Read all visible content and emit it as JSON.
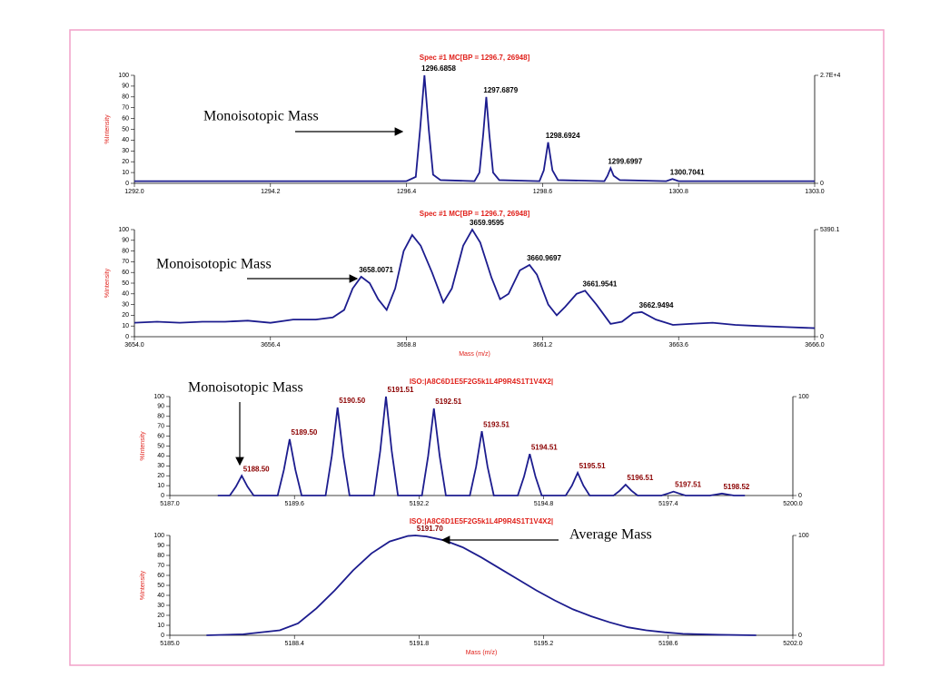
{
  "chart_data": [
    {
      "type": "line",
      "title": "Spec #1 MC[BP = 1296.7, 26948]",
      "ylabel": "%Intensity",
      "annotation": "Monoisotopic Mass",
      "xlim": [
        1292,
        1303
      ],
      "xticks": [
        {
          "value": 1292,
          "label": "1292.0"
        },
        1294.2,
        1296.4,
        1298.6,
        1300.8,
        {
          "value": 1303,
          "label": "1303.0"
        }
      ],
      "ylim": [
        0,
        100
      ],
      "yticks": [
        0,
        10,
        20,
        30,
        40,
        50,
        60,
        70,
        80,
        90,
        100
      ],
      "y2lim": [
        0,
        100
      ],
      "y2ticks": [
        0,
        {
          "value": 100,
          "label": "2.7E+4"
        }
      ],
      "color": "#1c1c8e",
      "peak_color": "#000000",
      "x": [
        1292,
        1296.4,
        1296.55,
        1296.62,
        1296.69,
        1296.76,
        1296.83,
        1296.95,
        1297.5,
        1297.58,
        1297.64,
        1297.69,
        1297.74,
        1297.8,
        1297.9,
        1298.55,
        1298.62,
        1298.69,
        1298.76,
        1298.85,
        1299.6,
        1299.65,
        1299.7,
        1299.75,
        1299.85,
        1300.6,
        1300.7,
        1300.8,
        1303
      ],
      "values": [
        2,
        2,
        6,
        50,
        100,
        50,
        8,
        3,
        2,
        10,
        45,
        80,
        45,
        10,
        3,
        2,
        12,
        38,
        12,
        3,
        2,
        7,
        14,
        7,
        3,
        2,
        4,
        2,
        2
      ],
      "peaks": {
        "x": [
          1296.6858,
          1297.6879,
          1298.6924,
          1299.6997,
          1300.7041
        ],
        "y": [
          100,
          80,
          38,
          14,
          4
        ],
        "labels": [
          "1296.6858",
          "1297.6879",
          "1298.6924",
          "1299.6997",
          "1300.7041"
        ]
      }
    },
    {
      "type": "line",
      "title": "Spec #1 MC[BP = 1296.7, 26948]",
      "ylabel": "%Intensity",
      "xlabel": "Mass (m/z)",
      "annotation": "Monoisotopic Mass",
      "xlim": [
        3654,
        3666
      ],
      "xticks": [
        {
          "value": 3654,
          "label": "3654.0"
        },
        3656.4,
        3658.8,
        3661.2,
        3663.6,
        {
          "value": 3666,
          "label": "3666.0"
        }
      ],
      "ylim": [
        0,
        100
      ],
      "yticks": [
        0,
        10,
        20,
        30,
        40,
        50,
        60,
        70,
        80,
        90,
        100
      ],
      "y2lim": [
        0,
        100
      ],
      "y2ticks": [
        0,
        {
          "value": 100,
          "label": "5390.1"
        }
      ],
      "color": "#1c1c8e",
      "peak_color": "#000000",
      "x": [
        3654,
        3654.4,
        3654.8,
        3655.2,
        3655.6,
        3656,
        3656.4,
        3656.8,
        3657.2,
        3657.5,
        3657.7,
        3657.85,
        3658.0,
        3658.15,
        3658.3,
        3658.45,
        3658.6,
        3658.75,
        3658.9,
        3659.05,
        3659.25,
        3659.45,
        3659.6,
        3659.8,
        3659.96,
        3660.1,
        3660.3,
        3660.45,
        3660.6,
        3660.8,
        3660.97,
        3661.1,
        3661.3,
        3661.45,
        3661.6,
        3661.8,
        3661.95,
        3662.15,
        3662.4,
        3662.6,
        3662.8,
        3662.95,
        3663.2,
        3663.5,
        3663.8,
        3664.2,
        3664.6,
        3665,
        3665.5,
        3666
      ],
      "values": [
        13,
        14,
        13,
        14,
        14,
        15,
        13,
        16,
        16,
        18,
        25,
        45,
        56,
        50,
        35,
        25,
        45,
        80,
        95,
        85,
        60,
        32,
        45,
        85,
        100,
        88,
        55,
        35,
        40,
        62,
        67,
        58,
        30,
        20,
        28,
        40,
        43,
        30,
        12,
        14,
        22,
        23,
        16,
        11,
        12,
        13,
        11,
        10,
        9,
        8
      ],
      "peaks": {
        "x": [
          3658.0071,
          3659.9595,
          3660.9697,
          3661.9541,
          3662.9494
        ],
        "y": [
          56,
          100,
          67,
          43,
          23
        ],
        "labels": [
          "3658.0071",
          "3659.9595",
          "3660.9697",
          "3661.9541",
          "3662.9494"
        ]
      }
    },
    {
      "type": "line",
      "title": "ISO:|A8C6D1E5F2G5k1L4P9R4S1T1V4X2|",
      "ylabel": "%Intensity",
      "annotation": "Monoisotopic Mass",
      "xlim": [
        5187,
        5200
      ],
      "xticks": [
        {
          "value": 5187,
          "label": "5187.0"
        },
        5189.6,
        5192.2,
        5194.8,
        5197.4,
        {
          "value": 5200,
          "label": "5200.0"
        }
      ],
      "ylim": [
        0,
        100
      ],
      "yticks": [
        0,
        10,
        20,
        30,
        40,
        50,
        60,
        70,
        80,
        90,
        100
      ],
      "y2lim": [
        0,
        100
      ],
      "y2ticks": [
        0,
        100
      ],
      "color": "#1c1c8e",
      "peak_color": "#8b0000",
      "x": [
        5188.0,
        5188.25,
        5188.38,
        5188.5,
        5188.62,
        5188.75,
        5189.25,
        5189.38,
        5189.5,
        5189.62,
        5189.75,
        5190.25,
        5190.38,
        5190.5,
        5190.62,
        5190.75,
        5191.26,
        5191.39,
        5191.51,
        5191.63,
        5191.76,
        5192.26,
        5192.39,
        5192.51,
        5192.63,
        5192.76,
        5193.26,
        5193.39,
        5193.51,
        5193.63,
        5193.76,
        5194.26,
        5194.39,
        5194.51,
        5194.63,
        5194.76,
        5195.26,
        5195.39,
        5195.51,
        5195.63,
        5195.76,
        5196.26,
        5196.39,
        5196.51,
        5196.63,
        5196.76,
        5197.26,
        5197.39,
        5197.51,
        5197.63,
        5197.76,
        5198.27,
        5198.4,
        5198.52,
        5198.64,
        5198.77,
        5199.0
      ],
      "values": [
        0,
        0,
        9,
        20,
        9,
        0,
        0,
        26,
        57,
        26,
        0,
        0,
        40,
        89,
        40,
        0,
        0,
        45,
        100,
        45,
        0,
        0,
        40,
        88,
        40,
        0,
        0,
        29,
        65,
        29,
        0,
        0,
        19,
        42,
        19,
        0,
        0,
        10,
        23,
        10,
        0,
        0,
        5,
        11,
        5,
        0,
        0,
        2,
        4,
        2,
        0,
        0,
        1,
        2,
        1,
        0,
        0
      ],
      "peaks": {
        "x": [
          5188.5,
          5189.5,
          5190.5,
          5191.51,
          5192.51,
          5193.51,
          5194.51,
          5195.51,
          5196.51,
          5197.51,
          5198.52
        ],
        "y": [
          20,
          57,
          89,
          100,
          88,
          65,
          42,
          23,
          11,
          4,
          2
        ],
        "labels": [
          "5188.50",
          "5189.50",
          "5190.50",
          "5191.51",
          "5192.51",
          "5193.51",
          "5194.51",
          "5195.51",
          "5196.51",
          "5197.51",
          "5198.52"
        ]
      }
    },
    {
      "type": "line",
      "title": "ISO:|A8C6D1E5F2G5k1L4P9R4S1T1V4X2|",
      "ylabel": "%Intensity",
      "xlabel": "Mass (m/z)",
      "annotation": "Average Mass",
      "xlim": [
        5185,
        5202
      ],
      "xticks": [
        {
          "value": 5185,
          "label": "5185.0"
        },
        5188.4,
        5191.8,
        5195.2,
        5198.6,
        {
          "value": 5202,
          "label": "5202.0"
        }
      ],
      "ylim": [
        0,
        100
      ],
      "yticks": [
        0,
        10,
        20,
        30,
        40,
        50,
        60,
        70,
        80,
        90,
        100
      ],
      "y2lim": [
        0,
        100
      ],
      "y2ticks": [
        0,
        100
      ],
      "color": "#1c1c8e",
      "peak_color": "#8b0000",
      "x": [
        5186,
        5187,
        5188,
        5188.5,
        5189,
        5189.5,
        5190,
        5190.5,
        5191,
        5191.5,
        5191.7,
        5192,
        5192.5,
        5193,
        5193.5,
        5194,
        5194.5,
        5195,
        5195.5,
        5196,
        5196.5,
        5197,
        5197.5,
        5198,
        5198.5,
        5199,
        5200,
        5201
      ],
      "values": [
        0,
        1,
        5,
        12,
        27,
        45,
        65,
        82,
        94,
        99.5,
        100,
        99,
        95,
        88,
        78,
        67,
        56,
        45,
        35,
        26,
        19,
        13,
        8,
        5,
        3,
        1.5,
        0.5,
        0
      ],
      "peaks": {
        "x": [
          5191.7
        ],
        "y": [
          100
        ],
        "labels": [
          "5191.70"
        ]
      }
    }
  ]
}
